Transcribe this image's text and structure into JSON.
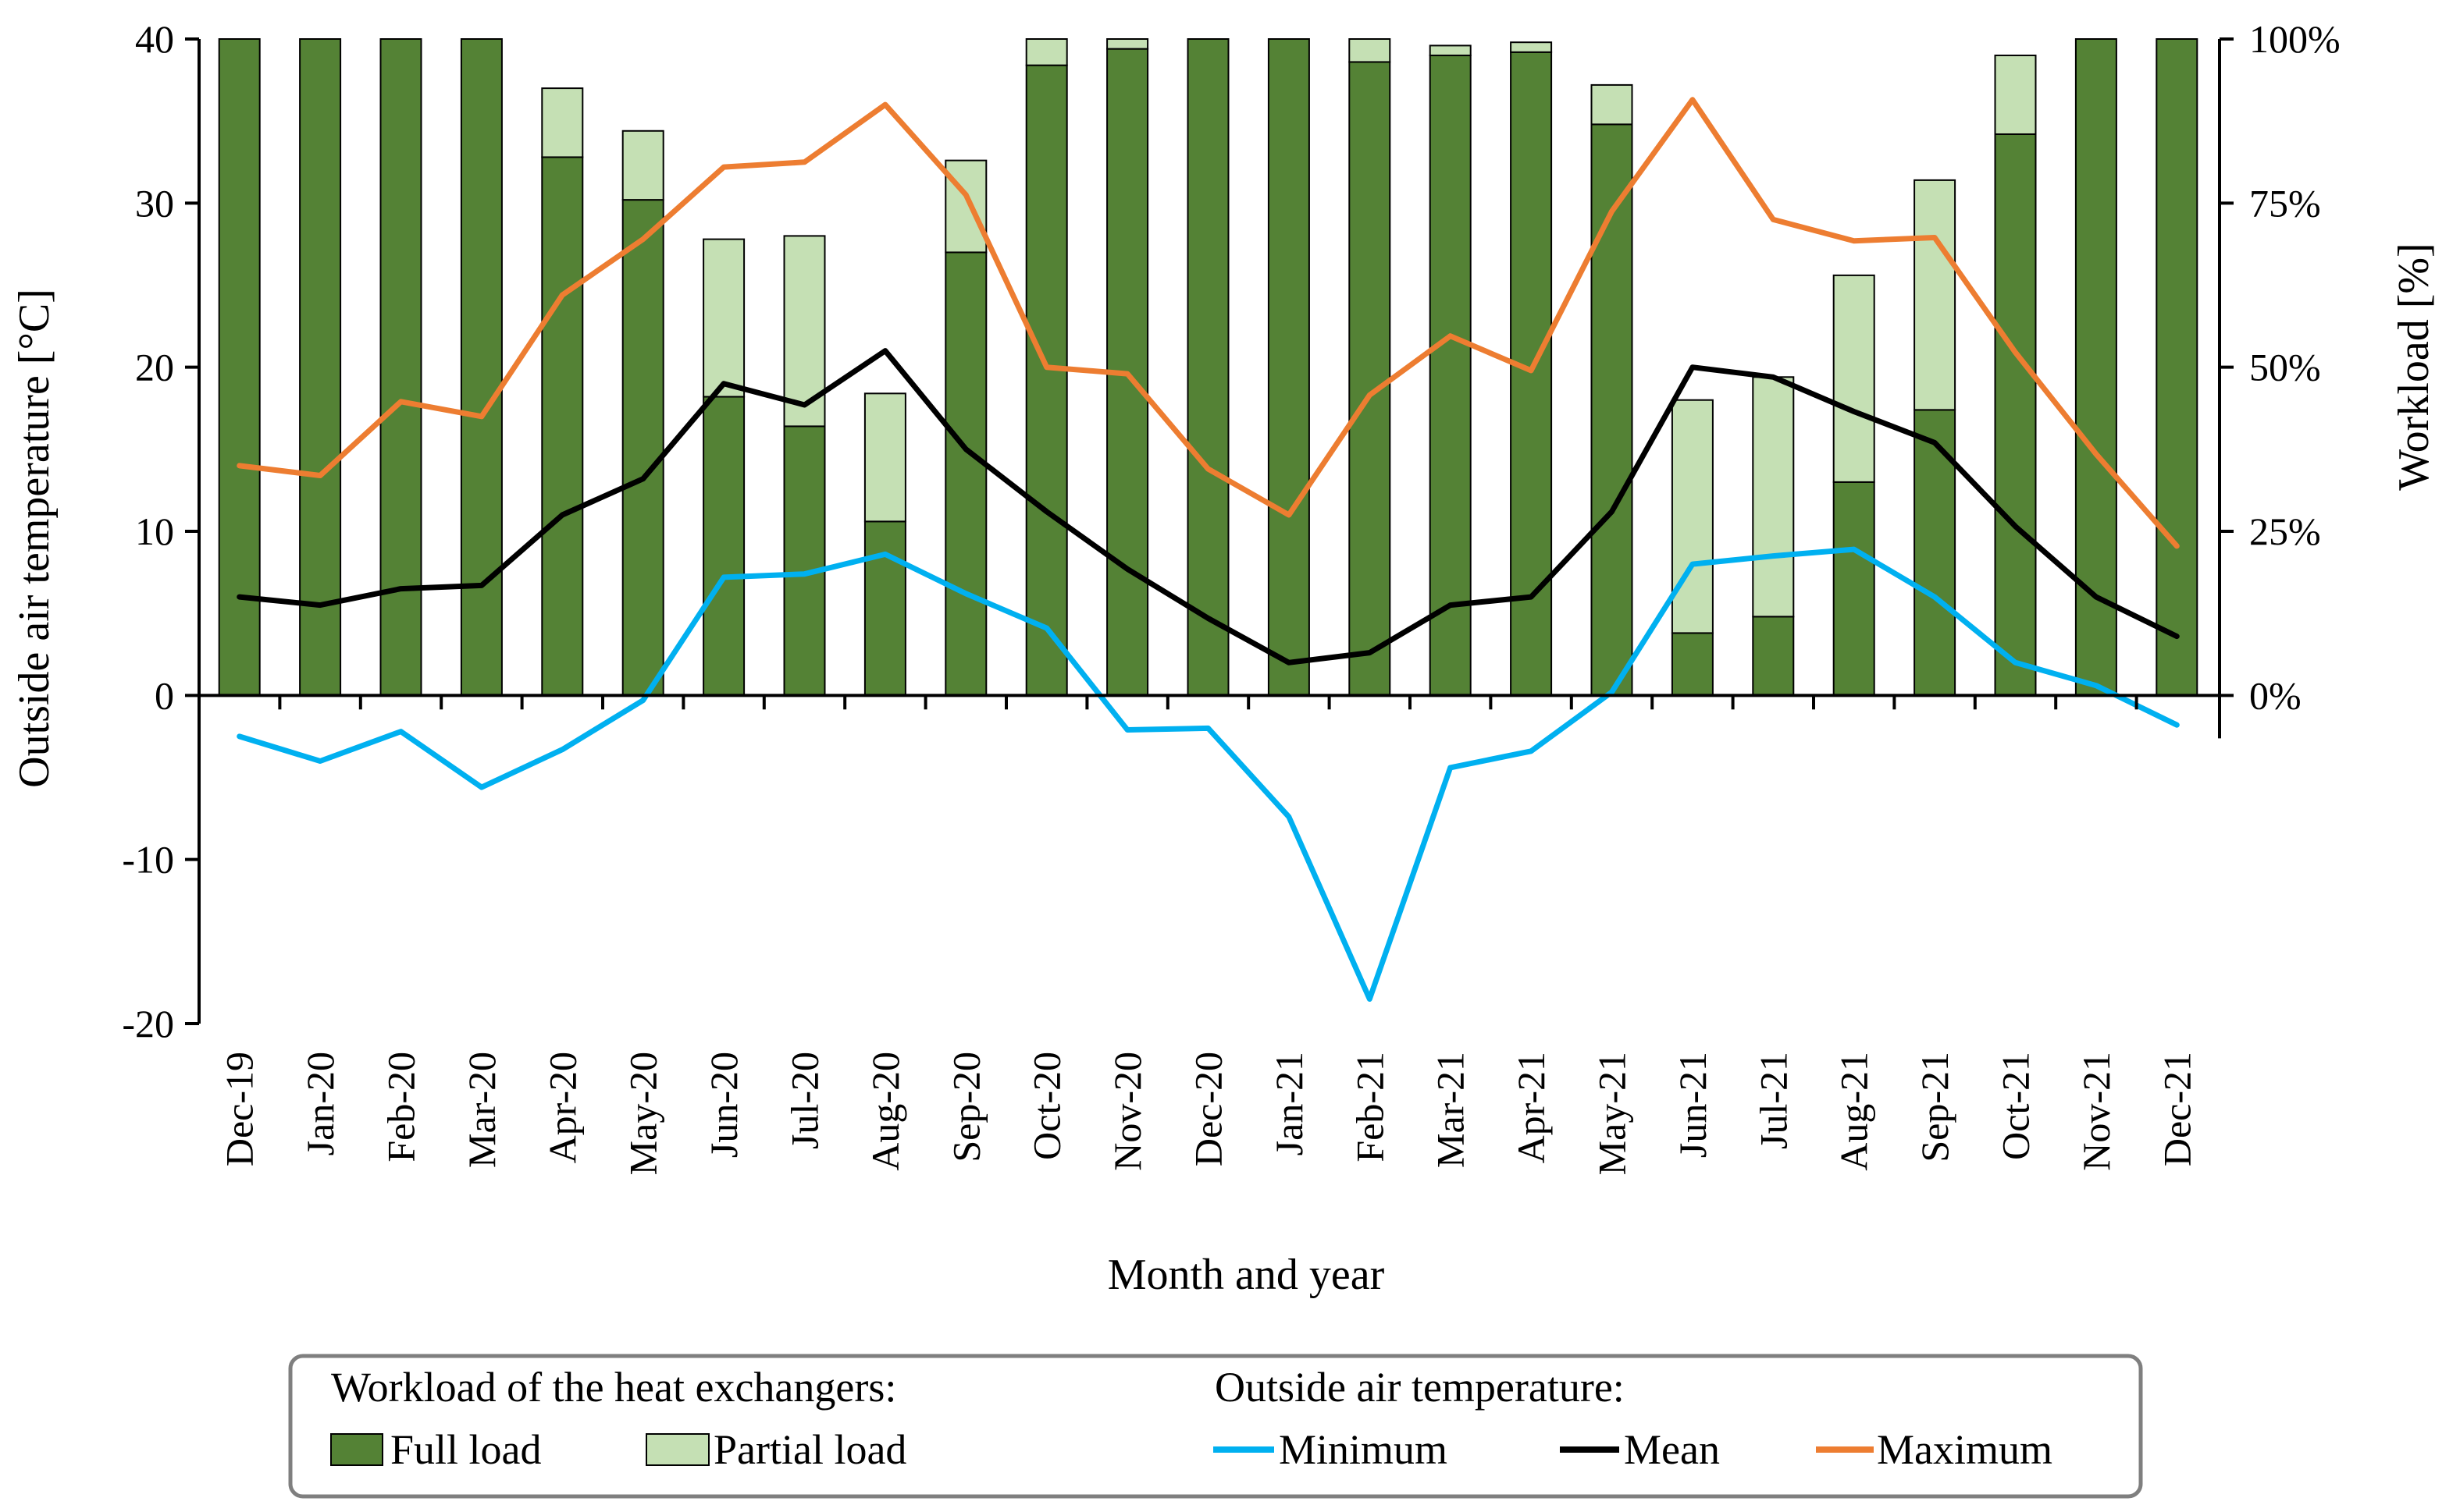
{
  "chart_data": {
    "type": "bar+line",
    "title": "",
    "xlabel": "Month and year",
    "ylabel_left": "Outside  air temperature [°C]",
    "ylabel_right": "Workload [%]",
    "ylim_left": [
      -20,
      40
    ],
    "ylim_right": [
      0,
      100
    ],
    "yticks_left": [
      "-20",
      "-10",
      "0",
      "10",
      "20",
      "30",
      "40"
    ],
    "yticks_right": [
      "0%",
      "25%",
      "50%",
      "75%",
      "100%"
    ],
    "categories": [
      "Dec-19",
      "Jan-20",
      "Feb-20",
      "Mar-20",
      "Apr-20",
      "May-20",
      "Jun-20",
      "Jul-20",
      "Aug-20",
      "Sep-20",
      "Oct-20",
      "Nov-20",
      "Dec-20",
      "Jan-21",
      "Feb-21",
      "Mar-21",
      "Apr-21",
      "May-21",
      "Jun-21",
      "Jul-21",
      "Aug-21",
      "Sep-21",
      "Oct-21",
      "Nov-21",
      "Dec-21"
    ],
    "bar_series": [
      {
        "name": "Full load",
        "color": "#548235",
        "axis": "right",
        "values": [
          100,
          100,
          100,
          100,
          82,
          75.5,
          45.5,
          41,
          26.5,
          67.5,
          96,
          98.5,
          100,
          100,
          96.5,
          97.5,
          98,
          87,
          9.5,
          12,
          32.5,
          43.5,
          85.5,
          100,
          100
        ]
      },
      {
        "name": "Partial load",
        "color": "#c5e0b4",
        "axis": "right",
        "values": [
          0,
          0,
          0,
          0,
          10.5,
          10.5,
          24,
          29,
          19.5,
          14,
          4,
          1.5,
          0,
          0,
          3.5,
          1.5,
          1.5,
          6,
          35.5,
          36.5,
          31.5,
          35,
          12,
          0,
          0
        ]
      }
    ],
    "line_series": [
      {
        "name": "Minimum",
        "color": "#00b0f0",
        "axis": "left",
        "values": [
          -2.5,
          -4,
          -2.2,
          -5.6,
          -3.3,
          -0.3,
          7.2,
          7.4,
          8.6,
          6.2,
          4.1,
          -2.1,
          -2,
          -7.4,
          -18.5,
          -4.4,
          -3.4,
          0.2,
          8,
          8.5,
          8.9,
          6,
          2,
          0.6,
          -1.8
        ]
      },
      {
        "name": "Mean",
        "color": "#000000",
        "axis": "left",
        "values": [
          6,
          5.5,
          6.5,
          6.7,
          11,
          13.2,
          19,
          17.7,
          21,
          15,
          11.2,
          7.7,
          4.7,
          2,
          2.6,
          5.5,
          6,
          11.2,
          20,
          19.4,
          17.3,
          15.4,
          10.3,
          6,
          3.6
        ]
      },
      {
        "name": "Maximum",
        "color": "#ed7d31",
        "axis": "left",
        "values": [
          14,
          13.4,
          17.9,
          17,
          24.4,
          27.8,
          32.2,
          32.5,
          36,
          30.5,
          20,
          19.6,
          13.8,
          11,
          18.3,
          21.9,
          19.8,
          29.5,
          36.3,
          29,
          27.7,
          27.9,
          20.9,
          14.7,
          9.1
        ]
      }
    ],
    "legend": {
      "placement": "bottom",
      "group1_title": "Workload of the heat exchangers:",
      "group2_title": "Outside  air temperature:",
      "items": [
        "Full load",
        "Partial load",
        "Minimum",
        "Mean",
        "Maximum"
      ]
    }
  }
}
